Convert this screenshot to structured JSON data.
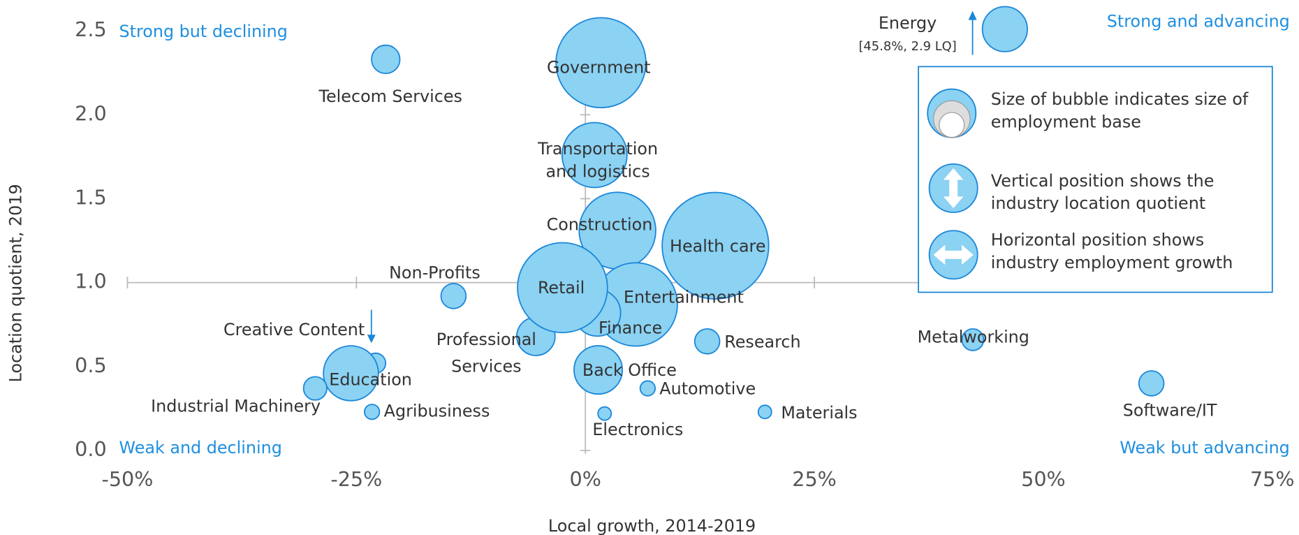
{
  "chart_data": {
    "type": "bubble",
    "x_label": "Local growth, 2014-2019",
    "y_label": "Location quotient, 2019",
    "xlim": [
      -50,
      75
    ],
    "ylim": [
      0,
      2.5
    ],
    "xticks": [
      {
        "value": -50,
        "label": "-50%"
      },
      {
        "value": -25,
        "label": "-25%"
      },
      {
        "value": 0,
        "label": "0%"
      },
      {
        "value": 25,
        "label": "25%"
      },
      {
        "value": 50,
        "label": "50%"
      },
      {
        "value": 75,
        "label": "75%"
      }
    ],
    "yticks": [
      {
        "value": 0,
        "label": "0.0"
      },
      0.5,
      {
        "value": 1,
        "label": "1.0"
      },
      1.5,
      {
        "value": 2,
        "label": "2.0"
      },
      2.5
    ],
    "color": "#8bd2f3",
    "edge_color": "#1a86d8",
    "quadrants": [
      "Strong but declining",
      "Strong and advancing",
      "Weak and declining",
      "Weak but advancing"
    ],
    "legend": [
      "Size of bubble indicates size of employment base",
      "Vertical position shows the industry location quotient",
      "Horizontal position shows industry employment growth"
    ],
    "points": [
      {
        "name": [
          "Health care"
        ],
        "x": 14.2,
        "y": 1.22,
        "size": 64
      },
      {
        "name": [
          "Government"
        ],
        "x": 1.7,
        "y": 2.31,
        "size": 54
      },
      {
        "name": [
          "Construction"
        ],
        "x": 3.5,
        "y": 1.31,
        "size": 46
      },
      {
        "name": [
          "Entertainment"
        ],
        "x": 5.5,
        "y": 0.87,
        "size": 50
      },
      {
        "name": [
          "Transportation",
          "and logistics"
        ],
        "x": 1.0,
        "y": 1.76,
        "size": 39
      },
      {
        "name": [
          "Finance"
        ],
        "x": 1.3,
        "y": 0.82,
        "size": 28
      },
      {
        "name": [
          "Professional",
          "Services"
        ],
        "x": -5.4,
        "y": 0.68,
        "size": 23
      },
      {
        "name": [
          "Retail"
        ],
        "x": -2.5,
        "y": 0.97,
        "size": 54
      },
      {
        "name": [
          "Back Office"
        ],
        "x": 1.4,
        "y": 0.48,
        "size": 29
      },
      {
        "name": [
          "Telecom Services"
        ],
        "x": -21.8,
        "y": 2.33,
        "size": 17
      },
      {
        "name": [
          "Automotive"
        ],
        "x": 6.8,
        "y": 0.37,
        "size": 9
      },
      {
        "name": [
          "Electronics"
        ],
        "x": 2.1,
        "y": 0.22,
        "size": 8
      },
      {
        "name": [
          "Materials"
        ],
        "x": 19.6,
        "y": 0.23,
        "size": 8
      },
      {
        "name": [
          "Research"
        ],
        "x": 13.3,
        "y": 0.65,
        "size": 15
      },
      {
        "name": [
          "Non-Profits"
        ],
        "x": -14.4,
        "y": 0.92,
        "size": 15
      },
      {
        "name": [
          "Creative Content"
        ],
        "x": -22.9,
        "y": 0.52,
        "size": 12
      },
      {
        "name": [
          "Education"
        ],
        "x": -25.6,
        "y": 0.46,
        "size": 33
      },
      {
        "name": [
          "Industrial Machinery"
        ],
        "x": -29.5,
        "y": 0.37,
        "size": 14
      },
      {
        "name": [
          "Agribusiness"
        ],
        "x": -23.3,
        "y": 0.23,
        "size": 9
      },
      {
        "name": [
          "Metalworking"
        ],
        "x": 42.3,
        "y": 0.66,
        "size": 13
      },
      {
        "name": [
          "Software/IT"
        ],
        "x": 61.8,
        "y": 0.4,
        "size": 15
      }
    ],
    "offscale": {
      "name": "Energy",
      "label": "[45.8%, 2.9 LQ]",
      "x": 45.8,
      "size": 27
    }
  }
}
